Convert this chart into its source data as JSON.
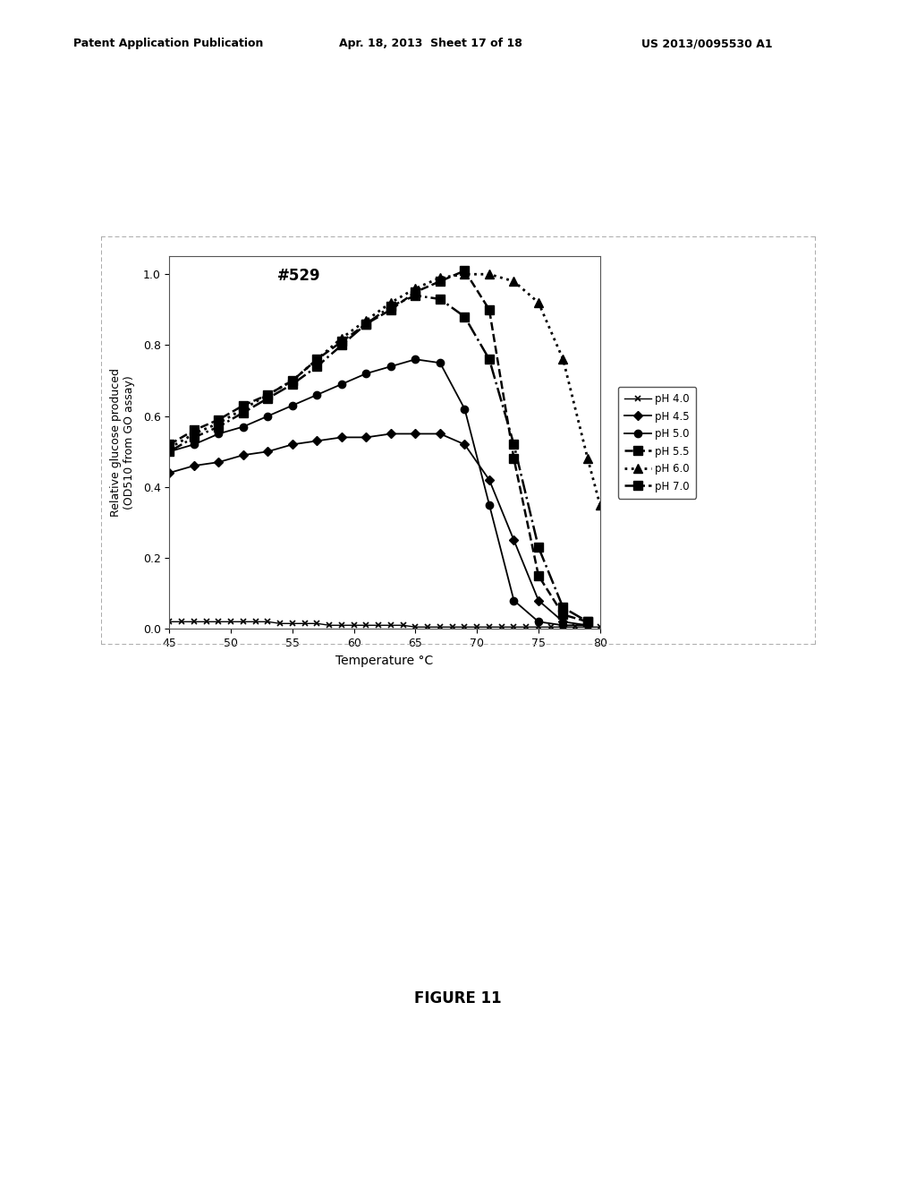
{
  "title": "#529",
  "xlabel": "Temperature °C",
  "ylabel": "Relative glucose produced\n(OD510 from GO assay)",
  "figure_caption": "FIGURE 11",
  "xlim": [
    45,
    80
  ],
  "ylim": [
    0,
    1.05
  ],
  "xticks": [
    45,
    50,
    55,
    60,
    65,
    70,
    75,
    80
  ],
  "yticks": [
    0,
    0.2,
    0.4,
    0.6,
    0.8,
    1
  ],
  "series": {
    "pH 4.0": {
      "x": [
        45,
        46,
        47,
        48,
        49,
        50,
        51,
        52,
        53,
        54,
        55,
        56,
        57,
        58,
        59,
        60,
        61,
        62,
        63,
        64,
        65,
        66,
        67,
        68,
        69,
        70,
        71,
        72,
        73,
        74,
        75,
        76,
        77,
        78,
        79,
        80
      ],
      "y": [
        0.02,
        0.02,
        0.02,
        0.02,
        0.02,
        0.02,
        0.02,
        0.02,
        0.02,
        0.015,
        0.015,
        0.015,
        0.015,
        0.01,
        0.01,
        0.01,
        0.01,
        0.01,
        0.01,
        0.01,
        0.005,
        0.005,
        0.005,
        0.005,
        0.005,
        0.005,
        0.005,
        0.005,
        0.005,
        0.005,
        0.005,
        0.005,
        0.005,
        0.005,
        0.005,
        0.005
      ],
      "linestyle": "-",
      "marker": "x",
      "color": "#000000",
      "linewidth": 1.0,
      "markersize": 5,
      "markerfacecolor": "none",
      "markeredgewidth": 1.2
    },
    "pH 4.5": {
      "x": [
        45,
        47,
        49,
        51,
        53,
        55,
        57,
        59,
        61,
        63,
        65,
        67,
        69,
        71,
        73,
        75,
        77,
        79
      ],
      "y": [
        0.44,
        0.46,
        0.47,
        0.49,
        0.5,
        0.52,
        0.53,
        0.54,
        0.54,
        0.55,
        0.55,
        0.55,
        0.52,
        0.42,
        0.25,
        0.08,
        0.02,
        0.01
      ],
      "linestyle": "-",
      "marker": "D",
      "color": "#000000",
      "linewidth": 1.3,
      "markersize": 5,
      "markerfacecolor": "#000000"
    },
    "pH 5.0": {
      "x": [
        45,
        47,
        49,
        51,
        53,
        55,
        57,
        59,
        61,
        63,
        65,
        67,
        69,
        71,
        73,
        75,
        77,
        79
      ],
      "y": [
        0.5,
        0.52,
        0.55,
        0.57,
        0.6,
        0.63,
        0.66,
        0.69,
        0.72,
        0.74,
        0.76,
        0.75,
        0.62,
        0.35,
        0.08,
        0.02,
        0.01,
        0.01
      ],
      "linestyle": "-",
      "marker": "o",
      "color": "#000000",
      "linewidth": 1.3,
      "markersize": 6,
      "markerfacecolor": "#000000"
    },
    "pH 5.5": {
      "x": [
        45,
        47,
        49,
        51,
        53,
        55,
        57,
        59,
        61,
        63,
        65,
        67,
        69,
        71,
        73,
        75,
        77,
        79
      ],
      "y": [
        0.52,
        0.56,
        0.59,
        0.63,
        0.66,
        0.7,
        0.76,
        0.81,
        0.86,
        0.9,
        0.95,
        0.98,
        1.01,
        0.9,
        0.48,
        0.15,
        0.04,
        0.02
      ],
      "linestyle": "--",
      "marker": "s",
      "color": "#000000",
      "linewidth": 1.8,
      "markersize": 7,
      "markerfacecolor": "#000000"
    },
    "pH 6.0": {
      "x": [
        45,
        47,
        49,
        51,
        53,
        55,
        57,
        59,
        61,
        63,
        65,
        67,
        69,
        71,
        73,
        75,
        77,
        79,
        80
      ],
      "y": [
        0.51,
        0.55,
        0.58,
        0.62,
        0.66,
        0.7,
        0.76,
        0.82,
        0.87,
        0.92,
        0.96,
        0.99,
        1.0,
        1.0,
        0.98,
        0.92,
        0.76,
        0.48,
        0.35
      ],
      "linestyle": ":",
      "marker": "^",
      "color": "#000000",
      "linewidth": 2.0,
      "markersize": 7,
      "markerfacecolor": "#000000"
    },
    "pH 7.0": {
      "x": [
        45,
        47,
        49,
        51,
        53,
        55,
        57,
        59,
        61,
        63,
        65,
        67,
        69,
        71,
        73,
        75,
        77,
        79
      ],
      "y": [
        0.5,
        0.54,
        0.57,
        0.61,
        0.65,
        0.69,
        0.74,
        0.8,
        0.86,
        0.91,
        0.94,
        0.93,
        0.88,
        0.76,
        0.52,
        0.23,
        0.06,
        0.02
      ],
      "linestyle": "-.",
      "marker": "s",
      "color": "#000000",
      "linewidth": 1.8,
      "markersize": 7,
      "markerfacecolor": "#000000"
    }
  },
  "header_left": "Patent Application Publication",
  "header_date": "Apr. 18, 2013  Sheet 17 of 18",
  "header_right": "US 2013/0095530 A1",
  "background_color": "#ffffff",
  "plot_background": "#ffffff"
}
